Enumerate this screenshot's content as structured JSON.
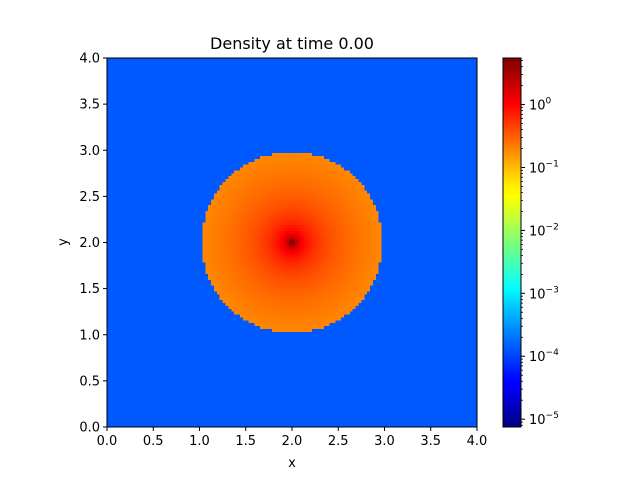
{
  "chart_data": {
    "type": "heatmap",
    "title": "Density at time 0.00",
    "xlabel": "x",
    "ylabel": "y",
    "xlim": [
      0.0,
      4.0
    ],
    "ylim": [
      0.0,
      4.0
    ],
    "xticks": [
      "0.0",
      "0.5",
      "1.0",
      "1.5",
      "2.0",
      "2.5",
      "3.0",
      "3.5",
      "4.0"
    ],
    "yticks": [
      "0.0",
      "0.5",
      "1.0",
      "1.5",
      "2.0",
      "2.5",
      "3.0",
      "3.5",
      "4.0"
    ],
    "grid": false,
    "colormap": "jet",
    "color_scale": "log",
    "colorbar": {
      "vmin": 7.5e-06,
      "vmax": 5.5,
      "ticks": [
        {
          "base": "10",
          "exp": "0",
          "value": 1
        },
        {
          "base": "10",
          "exp": "−1",
          "value": 0.1
        },
        {
          "base": "10",
          "exp": "−2",
          "value": 0.01
        },
        {
          "base": "10",
          "exp": "−3",
          "value": 0.001
        },
        {
          "base": "10",
          "exp": "−4",
          "value": 0.0001
        },
        {
          "base": "10",
          "exp": "−5",
          "value": 1e-05
        }
      ]
    },
    "field": {
      "background_density": 0.00013,
      "clump": {
        "center": [
          2.0,
          2.0
        ],
        "radius": 0.98,
        "edge_density": 0.17,
        "peak_density": 5.5
      }
    }
  }
}
